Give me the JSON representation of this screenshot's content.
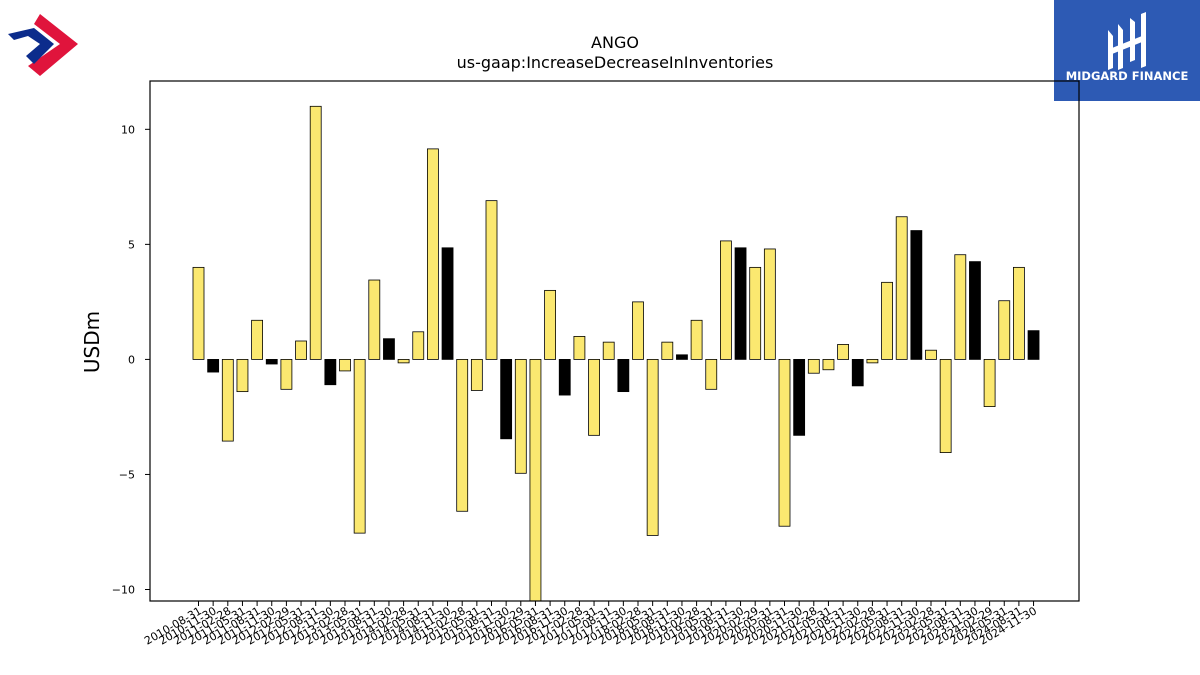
{
  "branding": {
    "left_logo": "diamond-chevron-logo",
    "right_logo": "midgard-finance-logo",
    "right_logo_text": "MIDGARD FINANCE",
    "logo_colors": {
      "red": "#e0143c",
      "blue": "#0c2c8c",
      "panel": "#2d5ab4"
    }
  },
  "chart_data": {
    "type": "bar",
    "title": "ANGO",
    "subtitle": "us-gaap:IncreaseDecreaseInInventories",
    "xlabel": "",
    "ylabel": "USDm",
    "ylim": [
      -10.5,
      12.1
    ],
    "yticks": [
      10,
      5,
      0,
      -5,
      -10
    ],
    "ytick_labels": [
      "10",
      "5",
      "0",
      "−5",
      "−10"
    ],
    "grid": false,
    "colors": {
      "positive": "#fbe870",
      "negative": "#000000",
      "edge": "#000000"
    },
    "categories": [
      "2010-08-31",
      "2010-11-30",
      "2011-02-28",
      "2011-05-31",
      "2011-08-31",
      "2011-11-30",
      "2012-02-29",
      "2012-05-31",
      "2012-08-31",
      "2012-11-30",
      "2013-02-28",
      "2013-05-31",
      "2013-08-31",
      "2013-11-30",
      "2014-02-28",
      "2014-05-31",
      "2014-08-31",
      "2014-11-30",
      "2015-02-28",
      "2015-05-31",
      "2015-08-31",
      "2015-11-30",
      "2016-02-29",
      "2016-05-31",
      "2016-08-31",
      "2016-11-30",
      "2017-02-28",
      "2017-05-31",
      "2017-08-31",
      "2017-11-30",
      "2018-02-28",
      "2018-05-31",
      "2018-08-31",
      "2018-11-30",
      "2019-02-28",
      "2019-05-31",
      "2019-08-31",
      "2019-11-30",
      "2020-02-29",
      "2020-05-31",
      "2020-08-31",
      "2020-11-30",
      "2021-02-28",
      "2021-05-31",
      "2021-08-31",
      "2021-11-30",
      "2022-02-28",
      "2022-05-31",
      "2022-08-31",
      "2022-11-30",
      "2023-02-28",
      "2023-05-31",
      "2023-08-31",
      "2023-11-30",
      "2024-02-29",
      "2024-05-31",
      "2024-08-31",
      "2024-11-30"
    ],
    "values": [
      4.0,
      -0.55,
      -3.55,
      -1.4,
      1.7,
      -0.2,
      -1.3,
      0.8,
      11.0,
      -1.1,
      -0.5,
      -7.55,
      3.45,
      0.9,
      -0.15,
      1.2,
      9.15,
      4.85,
      -6.6,
      -1.35,
      6.9,
      -3.45,
      -4.95,
      -10.5,
      3.0,
      -1.55,
      1.0,
      -3.3,
      0.75,
      -1.4,
      2.5,
      -7.65,
      0.75,
      0.2,
      1.7,
      -1.3,
      5.15,
      4.85,
      4.0,
      4.8,
      -7.25,
      -3.3,
      -0.6,
      -0.45,
      0.65,
      -1.15,
      -0.15,
      3.35,
      6.2,
      5.6,
      0.4,
      -4.05,
      4.55,
      4.25,
      -2.05,
      2.55,
      4.0,
      1.25
    ],
    "bar_color_group": [
      "y",
      "b",
      "y",
      "y",
      "y",
      "b",
      "y",
      "y",
      "y",
      "b",
      "y",
      "y",
      "y",
      "b",
      "y",
      "y",
      "y",
      "b",
      "y",
      "y",
      "y",
      "b",
      "y",
      "y",
      "y",
      "b",
      "y",
      "y",
      "y",
      "b",
      "y",
      "y",
      "y",
      "b",
      "y",
      "y",
      "y",
      "b",
      "y",
      "y",
      "y",
      "b",
      "y",
      "y",
      "y",
      "b",
      "y",
      "y",
      "y",
      "b",
      "y",
      "y",
      "y",
      "b",
      "y",
      "y",
      "y",
      "b"
    ]
  }
}
